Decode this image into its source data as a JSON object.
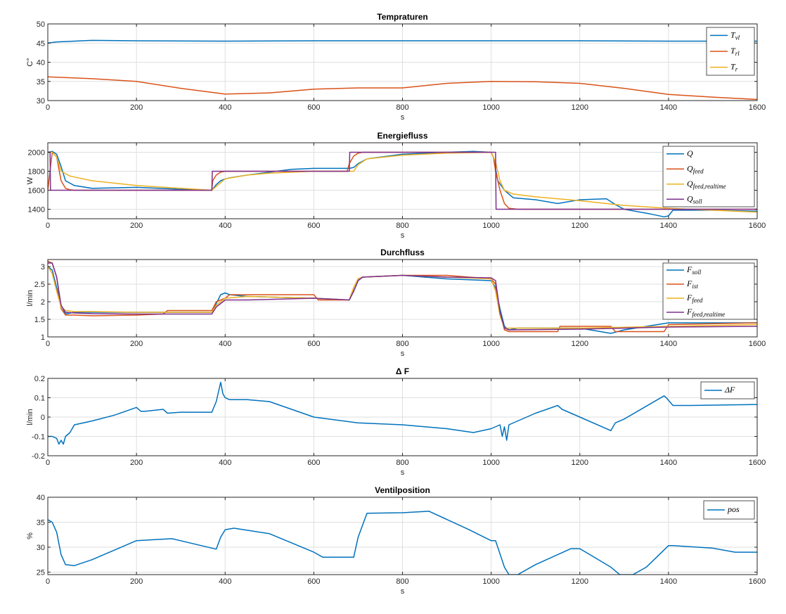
{
  "colors": {
    "blue": "#0072BD",
    "red": "#D95319",
    "yellow": "#EDB120",
    "purple": "#7E2F8E"
  },
  "chart_data": [
    {
      "type": "line",
      "title": "Tempraturen",
      "xlabel": "s",
      "ylabel": "C°",
      "xlim": [
        0,
        1600
      ],
      "ylim": [
        30,
        50
      ],
      "xticks": [
        0,
        200,
        400,
        600,
        800,
        1000,
        1200,
        1400,
        1600
      ],
      "yticks": [
        30,
        35,
        40,
        45,
        50
      ],
      "grid": true,
      "legend_position": "top-right",
      "series": [
        {
          "name": "T_vl",
          "color": "blue",
          "x": [
            0,
            20,
            60,
            100,
            200,
            400,
            600,
            800,
            1000,
            1200,
            1400,
            1600
          ],
          "y": [
            45.0,
            45.3,
            45.5,
            45.7,
            45.6,
            45.5,
            45.6,
            45.6,
            45.6,
            45.6,
            45.5,
            45.5
          ]
        },
        {
          "name": "T_rl",
          "color": "red",
          "x": [
            0,
            100,
            200,
            300,
            400,
            500,
            600,
            700,
            800,
            900,
            1000,
            1100,
            1200,
            1300,
            1400,
            1500,
            1600
          ],
          "y": [
            36.2,
            35.7,
            35.0,
            33.2,
            31.7,
            32.0,
            33.0,
            33.3,
            33.3,
            34.5,
            35.0,
            34.9,
            34.5,
            33.2,
            31.6,
            30.9,
            30.3
          ]
        },
        {
          "name": "T_r",
          "color": "yellow",
          "x": [],
          "y": []
        }
      ]
    },
    {
      "type": "line",
      "title": "Energiefluss",
      "xlabel": "s",
      "ylabel": "W",
      "xlim": [
        0,
        1600
      ],
      "ylim": [
        1300,
        2100
      ],
      "xticks": [
        0,
        200,
        400,
        600,
        800,
        1000,
        1200,
        1400,
        1600
      ],
      "yticks": [
        1400,
        1600,
        1800,
        2000
      ],
      "grid": true,
      "legend_position": "top-right",
      "series": [
        {
          "name": "Q",
          "color": "blue",
          "x": [
            0,
            10,
            20,
            30,
            40,
            60,
            100,
            200,
            300,
            370,
            380,
            390,
            400,
            410,
            450,
            500,
            550,
            600,
            680,
            690,
            700,
            720,
            800,
            900,
            960,
            1000,
            1005,
            1015,
            1030,
            1050,
            1100,
            1150,
            1200,
            1260,
            1280,
            1300,
            1360,
            1390,
            1400,
            1410,
            1500,
            1600
          ],
          "y": [
            2000,
            2010,
            1980,
            1850,
            1700,
            1650,
            1620,
            1630,
            1610,
            1600,
            1660,
            1700,
            1720,
            1730,
            1760,
            1790,
            1820,
            1830,
            1830,
            1840,
            1880,
            1930,
            1980,
            2000,
            2010,
            2000,
            1950,
            1700,
            1600,
            1520,
            1500,
            1460,
            1500,
            1510,
            1450,
            1400,
            1350,
            1320,
            1330,
            1390,
            1390,
            1380
          ]
        },
        {
          "name": "Q_feed",
          "color": "red",
          "x": [
            0,
            10,
            20,
            30,
            40,
            50,
            60,
            100,
            200,
            370,
            372,
            380,
            390,
            400,
            450,
            600,
            675,
            680,
            690,
            700,
            710,
            800,
            900,
            1000,
            1005,
            1010,
            1020,
            1030,
            1040,
            1060,
            1200,
            1400,
            1600
          ],
          "y": [
            1600,
            2000,
            1950,
            1700,
            1620,
            1605,
            1600,
            1600,
            1600,
            1600,
            1700,
            1760,
            1790,
            1800,
            1800,
            1800,
            1800,
            1880,
            1960,
            1990,
            2000,
            2000,
            2000,
            2000,
            1950,
            1800,
            1600,
            1460,
            1410,
            1400,
            1400,
            1400,
            1400
          ]
        },
        {
          "name": "Q_feed,realtime",
          "color": "yellow",
          "x": [
            0,
            10,
            20,
            30,
            50,
            100,
            200,
            370,
            380,
            400,
            450,
            500,
            600,
            690,
            700,
            720,
            800,
            900,
            1000,
            1010,
            1020,
            1030,
            1050,
            1100,
            1200,
            1300,
            1400,
            1500,
            1600
          ],
          "y": [
            2000,
            2000,
            1950,
            1800,
            1750,
            1700,
            1650,
            1600,
            1640,
            1720,
            1760,
            1780,
            1800,
            1800,
            1870,
            1930,
            1970,
            1990,
            2000,
            1900,
            1700,
            1600,
            1560,
            1530,
            1490,
            1440,
            1410,
            1390,
            1370
          ]
        },
        {
          "name": "Q_soll",
          "color": "purple",
          "x": [
            0,
            5,
            6,
            370,
            371,
            680,
            681,
            1010,
            1011,
            1600
          ],
          "y": [
            2000,
            2000,
            1600,
            1600,
            1800,
            1800,
            2000,
            2000,
            1400,
            1400
          ]
        }
      ]
    },
    {
      "type": "line",
      "title": "Durchfluss",
      "xlabel": "s",
      "ylabel": "l/min",
      "xlim": [
        0,
        1600
      ],
      "ylim": [
        1,
        3.2
      ],
      "xticks": [
        0,
        200,
        400,
        600,
        800,
        1000,
        1200,
        1400,
        1600
      ],
      "yticks": [
        1,
        1.5,
        2,
        2.5,
        3
      ],
      "grid": true,
      "legend_position": "top-right",
      "series": [
        {
          "name": "F_soll",
          "color": "blue",
          "x": [
            0,
            10,
            20,
            30,
            40,
            60,
            100,
            200,
            370,
            380,
            390,
            400,
            410,
            450,
            600,
            680,
            690,
            700,
            710,
            800,
            900,
            1000,
            1010,
            1020,
            1030,
            1040,
            1060,
            1200,
            1270,
            1300,
            1400,
            1600
          ],
          "y": [
            3.0,
            2.9,
            2.4,
            1.9,
            1.65,
            1.7,
            1.7,
            1.7,
            1.7,
            1.95,
            2.2,
            2.25,
            2.2,
            2.15,
            2.1,
            2.05,
            2.3,
            2.6,
            2.7,
            2.75,
            2.65,
            2.6,
            2.4,
            1.8,
            1.3,
            1.2,
            1.25,
            1.25,
            1.1,
            1.2,
            1.4,
            1.4
          ]
        },
        {
          "name": "F_ist",
          "color": "red",
          "x": [
            0,
            10,
            20,
            30,
            40,
            60,
            100,
            200,
            260,
            270,
            370,
            380,
            400,
            410,
            450,
            600,
            610,
            680,
            690,
            700,
            710,
            800,
            900,
            1000,
            1010,
            1020,
            1030,
            1040,
            1050,
            1150,
            1155,
            1270,
            1280,
            1390,
            1400,
            1600
          ],
          "y": [
            3.15,
            3.1,
            2.7,
            1.8,
            1.62,
            1.62,
            1.6,
            1.62,
            1.65,
            1.75,
            1.75,
            2.0,
            2.1,
            2.2,
            2.2,
            2.2,
            2.05,
            2.05,
            2.4,
            2.65,
            2.7,
            2.75,
            2.75,
            2.65,
            2.5,
            1.7,
            1.2,
            1.15,
            1.15,
            1.15,
            1.3,
            1.3,
            1.15,
            1.15,
            1.35,
            1.4
          ]
        },
        {
          "name": "F_feed",
          "color": "yellow",
          "x": [
            0,
            10,
            20,
            30,
            40,
            60,
            100,
            200,
            370,
            380,
            400,
            450,
            600,
            680,
            690,
            700,
            710,
            800,
            900,
            1000,
            1010,
            1020,
            1030,
            1040,
            1200,
            1400,
            1600
          ],
          "y": [
            3.0,
            2.8,
            2.3,
            1.85,
            1.75,
            1.72,
            1.72,
            1.7,
            1.7,
            1.9,
            2.1,
            2.15,
            2.1,
            2.05,
            2.4,
            2.65,
            2.7,
            2.75,
            2.7,
            2.65,
            2.3,
            1.6,
            1.25,
            1.25,
            1.25,
            1.3,
            1.35
          ]
        },
        {
          "name": "F_feed,realtime",
          "color": "purple",
          "x": [
            0,
            10,
            20,
            30,
            40,
            60,
            100,
            200,
            370,
            380,
            400,
            450,
            600,
            680,
            690,
            700,
            710,
            800,
            900,
            1000,
            1010,
            1020,
            1030,
            1040,
            1200,
            1400,
            1600
          ],
          "y": [
            3.1,
            3.1,
            2.7,
            1.9,
            1.7,
            1.68,
            1.66,
            1.65,
            1.65,
            1.85,
            2.05,
            2.05,
            2.1,
            2.05,
            2.3,
            2.6,
            2.7,
            2.75,
            2.7,
            2.68,
            2.6,
            1.7,
            1.25,
            1.2,
            1.22,
            1.28,
            1.3
          ]
        }
      ]
    },
    {
      "type": "line",
      "title": "Δ F",
      "xlabel": "s",
      "ylabel": "l/min",
      "xlim": [
        0,
        1600
      ],
      "ylim": [
        -0.2,
        0.2
      ],
      "xticks": [
        0,
        200,
        400,
        600,
        800,
        1000,
        1200,
        1400,
        1600
      ],
      "yticks": [
        -0.2,
        -0.1,
        0,
        0.1,
        0.2
      ],
      "grid": true,
      "legend_position": "top-right",
      "series": [
        {
          "name": "ΔF",
          "color": "blue",
          "x": [
            0,
            10,
            20,
            25,
            30,
            35,
            40,
            50,
            60,
            100,
            150,
            200,
            210,
            220,
            260,
            270,
            300,
            370,
            380,
            390,
            395,
            400,
            410,
            450,
            500,
            600,
            700,
            800,
            900,
            960,
            1000,
            1020,
            1025,
            1030,
            1035,
            1040,
            1060,
            1100,
            1150,
            1160,
            1200,
            1270,
            1280,
            1300,
            1390,
            1395,
            1410,
            1450,
            1600
          ],
          "y": [
            -0.1,
            -0.1,
            -0.11,
            -0.14,
            -0.12,
            -0.14,
            -0.1,
            -0.08,
            -0.04,
            -0.02,
            0.01,
            0.05,
            0.03,
            0.03,
            0.04,
            0.02,
            0.025,
            0.025,
            0.08,
            0.18,
            0.12,
            0.1,
            0.09,
            0.09,
            0.08,
            0.0,
            -0.03,
            -0.04,
            -0.06,
            -0.08,
            -0.06,
            -0.04,
            -0.1,
            -0.05,
            -0.12,
            -0.04,
            -0.02,
            0.02,
            0.06,
            0.04,
            0.0,
            -0.07,
            -0.03,
            -0.01,
            0.11,
            0.1,
            0.06,
            0.06,
            0.065
          ]
        }
      ]
    },
    {
      "type": "line",
      "title": "Ventilposition",
      "xlabel": "s",
      "ylabel": "%",
      "xlim": [
        0,
        1600
      ],
      "ylim": [
        24.5,
        40
      ],
      "xticks": [
        0,
        200,
        400,
        600,
        800,
        1000,
        1200,
        1400,
        1600
      ],
      "yticks": [
        25,
        30,
        35,
        40
      ],
      "grid": true,
      "legend_position": "top-right",
      "series": [
        {
          "name": "pos",
          "color": "blue",
          "x": [
            0,
            10,
            20,
            30,
            40,
            60,
            100,
            200,
            280,
            380,
            390,
            400,
            420,
            500,
            600,
            620,
            690,
            700,
            720,
            800,
            860,
            950,
            1000,
            1010,
            1030,
            1040,
            1060,
            1100,
            1180,
            1200,
            1270,
            1290,
            1320,
            1350,
            1400,
            1410,
            1500,
            1550,
            1600
          ],
          "y": [
            35.5,
            35.0,
            33.0,
            28.5,
            26.5,
            26.3,
            27.5,
            31.3,
            31.7,
            29.6,
            32.0,
            33.5,
            33.8,
            32.7,
            29.0,
            28.0,
            28.0,
            32.0,
            36.8,
            36.9,
            37.2,
            33.5,
            31.3,
            31.3,
            26.0,
            24.5,
            24.5,
            26.5,
            29.7,
            29.7,
            26.0,
            24.5,
            24.5,
            26.0,
            30.3,
            30.3,
            29.8,
            29.0,
            29.0
          ]
        }
      ]
    }
  ]
}
